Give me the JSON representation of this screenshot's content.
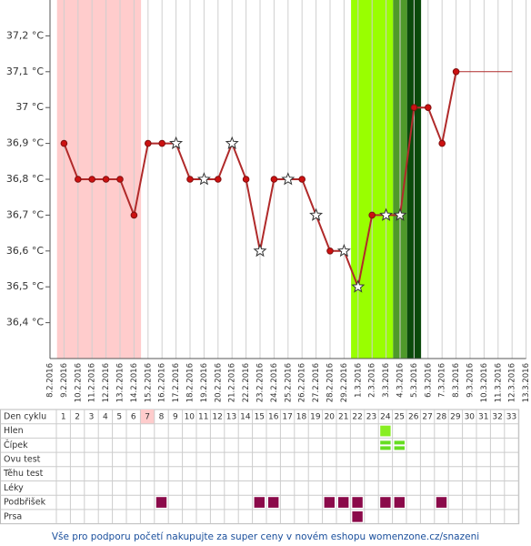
{
  "chart_data": {
    "type": "line",
    "categories": [
      "8.2.2016",
      "9.2.2016",
      "10.2.2016",
      "11.2.2016",
      "12.2.2016",
      "13.2.2016",
      "14.2.2016",
      "15.2.2016",
      "16.2.2016",
      "17.2.2016",
      "18.2.2016",
      "19.2.2016",
      "20.2.2016",
      "21.2.2016",
      "22.2.2016",
      "23.2.2016",
      "24.2.2016",
      "25.2.2016",
      "26.2.2016",
      "27.2.2016",
      "28.2.2016",
      "29.2.2016",
      "1.3.2016",
      "2.3.2016",
      "3.3.2016",
      "4.3.2016",
      "5.3.2016",
      "6.3.2016",
      "7.3.2016",
      "8.3.2016",
      "9.3.2016",
      "10.3.2016",
      "11.3.2016",
      "12.3.2016",
      "13.3.2016"
    ],
    "series": [
      {
        "color": "#b02a2a",
        "values": [
          null,
          36.9,
          36.8,
          36.8,
          36.8,
          36.8,
          36.7,
          36.9,
          36.9,
          36.9,
          36.8,
          36.8,
          36.8,
          36.9,
          36.8,
          36.6,
          36.8,
          36.8,
          36.8,
          36.7,
          36.6,
          36.6,
          36.5,
          36.7,
          36.7,
          36.7,
          37.0,
          37.0,
          36.9,
          37.1,
          null,
          null,
          null,
          null,
          null
        ],
        "markers": [
          null,
          "dot",
          "dot",
          "dot",
          "dot",
          "dot",
          "dot",
          "dot",
          "dot",
          "star",
          "dot",
          "star",
          "dot",
          "star",
          "dot",
          "star",
          "dot",
          "star",
          "dot",
          "star",
          "dot",
          "star",
          "star",
          "dot",
          "star",
          "star",
          "dot",
          "dot",
          "dot",
          "dot",
          null,
          null,
          null,
          null,
          null
        ],
        "projection_to": "12.3.2016"
      }
    ],
    "ylim": [
      36.3,
      37.3
    ],
    "yticks": [
      {
        "value": 36.4,
        "label": "36,4 °C"
      },
      {
        "value": 36.5,
        "label": "36,5 °C"
      },
      {
        "value": 36.6,
        "label": "36,6 °C"
      },
      {
        "value": 36.7,
        "label": "36,7 °C"
      },
      {
        "value": 36.8,
        "label": "36,8 °C"
      },
      {
        "value": 36.9,
        "label": "36,9 °C"
      },
      {
        "value": 37.0,
        "label": "37 °C"
      },
      {
        "value": 37.1,
        "label": "37,1 °C"
      },
      {
        "value": 37.2,
        "label": "37,2 °C"
      }
    ],
    "grid": true,
    "bands": [
      {
        "from": "9.2.2016",
        "to": "14.2.2016",
        "color": "#ffcccc"
      },
      {
        "from": "1.3.2016",
        "to": "3.3.2016",
        "color": "#99ff00"
      },
      {
        "from": "4.3.2016",
        "to": "4.3.2016",
        "color": "#4f9a2a"
      },
      {
        "from": "5.3.2016",
        "to": "5.3.2016",
        "color": "#0b4a0b"
      }
    ]
  },
  "table": {
    "header": "Den cyklu",
    "days": [
      1,
      2,
      3,
      4,
      5,
      6,
      7,
      8,
      9,
      10,
      11,
      12,
      13,
      14,
      15,
      16,
      17,
      18,
      19,
      20,
      21,
      22,
      23,
      24,
      25,
      26,
      27,
      28,
      29,
      30,
      31,
      32,
      33
    ],
    "highlight_day": 7,
    "rows": [
      {
        "label": "Hlen",
        "marked": [
          24
        ],
        "style": "solid"
      },
      {
        "label": "Čípek",
        "marked": [
          24,
          25
        ],
        "style": "striped"
      },
      {
        "label": "Ovu test",
        "marked": []
      },
      {
        "label": "Těhu test",
        "marked": []
      },
      {
        "label": "Léky",
        "marked": []
      },
      {
        "label": "Podbřišek",
        "marked": [
          8,
          15,
          16,
          20,
          21,
          22,
          24,
          25,
          28
        ],
        "style": "purple"
      },
      {
        "label": "Prsa",
        "marked": [
          22
        ],
        "style": "purple"
      }
    ]
  },
  "footer": "Vše pro podporu početí nakupujte za super ceny v novém eshopu womenzone.cz/snazeni"
}
